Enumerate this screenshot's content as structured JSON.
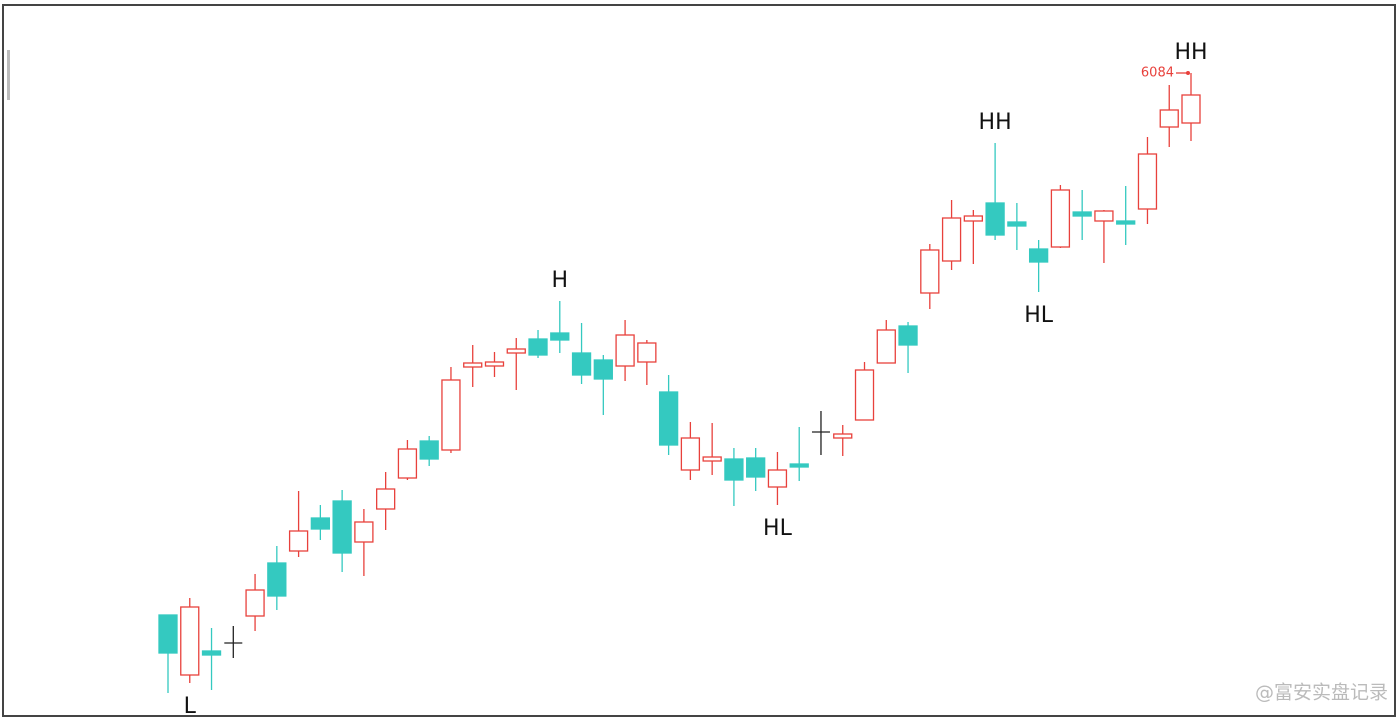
{
  "chart_data": {
    "type": "candlestick",
    "open": [
      5542,
      5482,
      5506,
      5514,
      5541,
      5594,
      5606,
      5639,
      5656,
      5615,
      5648,
      5679,
      5716,
      5707,
      5790,
      5791,
      5804,
      5818,
      5824,
      5804,
      5797,
      5791,
      5795,
      5765,
      5687,
      5696,
      5698,
      5699,
      5670,
      5693,
      5725,
      5719,
      5737,
      5794,
      5831,
      5864,
      5896,
      5936,
      5954,
      5935,
      5908,
      5910,
      5945,
      5936,
      5936,
      5948,
      6030,
      6034
    ],
    "high": [
      5542,
      5559,
      5529,
      5531,
      5583,
      5611,
      5666,
      5652,
      5667,
      5648,
      5685,
      5717,
      5721,
      5790,
      5812,
      5805,
      5819,
      5827,
      5856,
      5834,
      5802,
      5837,
      5817,
      5782,
      5735,
      5734,
      5709,
      5709,
      5705,
      5730,
      5746,
      5732,
      5795,
      5837,
      5835,
      5913,
      5957,
      5947,
      6014,
      5954,
      5917,
      5972,
      5967,
      5947,
      5971,
      6020,
      6072,
      6084
    ],
    "low": [
      5464,
      5474,
      5467,
      5499,
      5526,
      5547,
      5600,
      5617,
      5585,
      5581,
      5627,
      5677,
      5691,
      5704,
      5770,
      5780,
      5767,
      5799,
      5804,
      5773,
      5742,
      5776,
      5772,
      5702,
      5677,
      5682,
      5651,
      5666,
      5652,
      5676,
      5702,
      5701,
      5737,
      5794,
      5784,
      5848,
      5887,
      5893,
      5917,
      5907,
      5865,
      5909,
      5917,
      5894,
      5912,
      5933,
      6010,
      6016
    ],
    "close": [
      5504,
      5550,
      5502,
      5514,
      5567,
      5561,
      5626,
      5628,
      5604,
      5635,
      5668,
      5708,
      5698,
      5777,
      5794,
      5795,
      5808,
      5802,
      5817,
      5782,
      5778,
      5822,
      5814,
      5712,
      5719,
      5700,
      5677,
      5680,
      5687,
      5690,
      5725,
      5723,
      5787,
      5827,
      5812,
      5907,
      5939,
      5941,
      5922,
      5931,
      5895,
      5967,
      5941,
      5946,
      5935,
      6003,
      6047,
      6062
    ],
    "up_color": "#e8413c",
    "down_color": "#34c9c0",
    "doji_color": "#222222",
    "ylim": [
      5440,
      6130
    ],
    "annotations": [
      {
        "text": "L",
        "index": 1,
        "position": "below"
      },
      {
        "text": "H",
        "index": 18,
        "position": "above"
      },
      {
        "text": "HL",
        "index": 28,
        "position": "below"
      },
      {
        "text": "HH",
        "index": 38,
        "position": "above"
      },
      {
        "text": "HL",
        "index": 40,
        "position": "below"
      },
      {
        "text": "HH",
        "index": 47,
        "position": "above"
      }
    ],
    "price_label": {
      "value": 6084,
      "index": 47,
      "color": "#e8413c"
    },
    "watermark": "@富安实盘记录"
  }
}
